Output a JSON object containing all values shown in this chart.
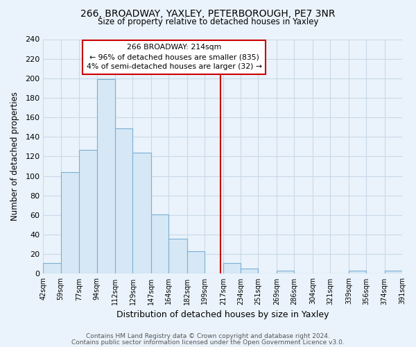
{
  "title1": "266, BROADWAY, YAXLEY, PETERBOROUGH, PE7 3NR",
  "title2": "Size of property relative to detached houses in Yaxley",
  "xlabel": "Distribution of detached houses by size in Yaxley",
  "ylabel": "Number of detached properties",
  "bin_edges": [
    42,
    59,
    77,
    94,
    112,
    129,
    147,
    164,
    182,
    199,
    217,
    234,
    251,
    269,
    286,
    304,
    321,
    339,
    356,
    374,
    391
  ],
  "bar_heights": [
    11,
    104,
    127,
    199,
    149,
    124,
    61,
    36,
    23,
    0,
    11,
    5,
    0,
    3,
    0,
    0,
    0,
    3,
    0,
    3
  ],
  "bar_color": "#d6e8f5",
  "bar_edge_color": "#7bafd4",
  "vline_x": 214,
  "vline_color": "#cc0000",
  "annotation_title": "266 BROADWAY: 214sqm",
  "annotation_line1": "← 96% of detached houses are smaller (835)",
  "annotation_line2": "4% of semi-detached houses are larger (32) →",
  "annotation_box_edge_color": "#cc0000",
  "annotation_box_face_color": "#ffffff",
  "ylim": [
    0,
    240
  ],
  "yticks": [
    0,
    20,
    40,
    60,
    80,
    100,
    120,
    140,
    160,
    180,
    200,
    220,
    240
  ],
  "tick_labels": [
    "42sqm",
    "59sqm",
    "77sqm",
    "94sqm",
    "112sqm",
    "129sqm",
    "147sqm",
    "164sqm",
    "182sqm",
    "199sqm",
    "217sqm",
    "234sqm",
    "251sqm",
    "269sqm",
    "286sqm",
    "304sqm",
    "321sqm",
    "339sqm",
    "356sqm",
    "374sqm",
    "391sqm"
  ],
  "footnote1": "Contains HM Land Registry data © Crown copyright and database right 2024.",
  "footnote2": "Contains public sector information licensed under the Open Government Licence v3.0.",
  "background_color": "#eaf3fb",
  "plot_bg_color": "#eaf3fb",
  "grid_color": "#c8d8e8"
}
